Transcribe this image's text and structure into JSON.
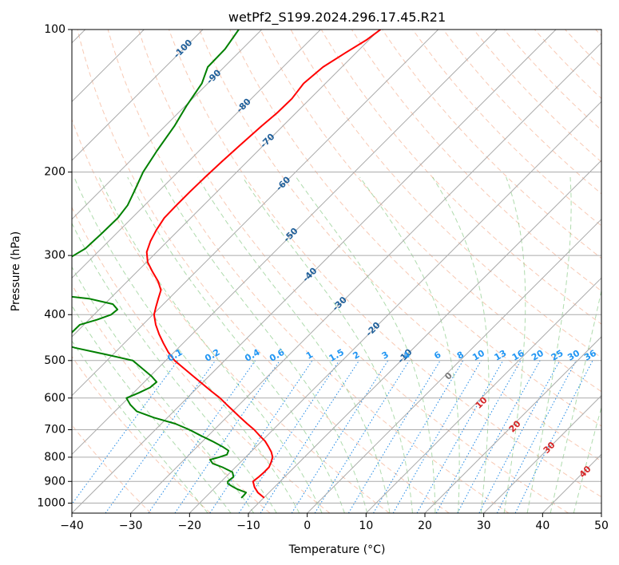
{
  "chart_data": {
    "type": "line",
    "subtype": "skew-T log-p diagram",
    "title": "wetPf2_S199.2024.296.17.45.R21",
    "xlabel": "Temperature (°C)",
    "ylabel": "Pressure (hPa)",
    "xlim": [
      -40,
      50
    ],
    "ylim": [
      1050,
      100
    ],
    "y_scale": "log",
    "grid": true,
    "x_ticks": [
      -40,
      -30,
      -20,
      -10,
      0,
      10,
      20,
      30,
      40,
      50
    ],
    "x_tick_labels": [
      "−40",
      "−30",
      "−20",
      "−10",
      "0",
      "10",
      "20",
      "30",
      "40",
      "50"
    ],
    "y_ticks": [
      100,
      200,
      300,
      400,
      500,
      600,
      700,
      800,
      900,
      1000
    ],
    "y_tick_labels": [
      "100",
      "200",
      "300",
      "400",
      "500",
      "600",
      "700",
      "800",
      "900",
      "1000"
    ],
    "isotherm_labels": [
      "-100",
      "-90",
      "-80",
      "-70",
      "-60",
      "-50",
      "-40",
      "-30",
      "-20",
      "-10"
    ],
    "mixing_ratio_labels": [
      "0.1",
      "0.2",
      "0.4",
      "0.6",
      "1",
      "1.5",
      "2",
      "3",
      "4",
      "6",
      "8",
      "10",
      "13",
      "16",
      "20",
      "25",
      "30",
      "36"
    ],
    "moist_adiabat_labels": [
      "0",
      "10",
      "20",
      "30",
      "40"
    ],
    "series": [
      {
        "color": "#ff0000",
        "pressure": [
          975,
          950,
          925,
          900,
          880,
          860,
          840,
          820,
          800,
          780,
          760,
          740,
          720,
          700,
          680,
          660,
          640,
          620,
          600,
          580,
          560,
          540,
          520,
          500,
          480,
          460,
          440,
          420,
          400,
          385,
          370,
          355,
          340,
          325,
          310,
          295,
          280,
          265,
          250,
          235,
          220,
          205,
          190,
          175,
          160,
          150,
          140,
          130,
          120,
          112,
          105,
          100
        ],
        "temperature": [
          -9.9,
          -11.9,
          -13.4,
          -14.6,
          -14.4,
          -14.3,
          -14.3,
          -14.8,
          -15.4,
          -16.5,
          -17.9,
          -19.4,
          -21.3,
          -23.2,
          -25.4,
          -27.6,
          -29.8,
          -32.1,
          -34.4,
          -37.1,
          -39.8,
          -42.6,
          -45.5,
          -48.5,
          -51.0,
          -53.3,
          -55.6,
          -57.8,
          -59.8,
          -60.8,
          -61.8,
          -62.8,
          -64.8,
          -67.3,
          -69.8,
          -71.7,
          -72.9,
          -73.8,
          -74.5,
          -74.6,
          -74.6,
          -74.5,
          -74.3,
          -74.0,
          -73.6,
          -73.2,
          -73.1,
          -73.7,
          -73.2,
          -71.8,
          -70.4,
          -69.8
        ]
      },
      {
        "color": "#008000",
        "pressure": [
          975,
          965,
          950,
          935,
          925,
          910,
          900,
          880,
          860,
          840,
          825,
          810,
          800,
          790,
          775,
          760,
          740,
          720,
          700,
          680,
          660,
          640,
          620,
          600,
          585,
          570,
          555,
          540,
          520,
          500,
          485,
          470,
          460,
          420,
          410,
          400,
          390,
          380,
          370,
          360,
          345,
          330,
          310,
          290,
          270,
          250,
          235,
          220,
          200,
          180,
          160,
          145,
          130,
          120,
          110,
          100
        ],
        "temperature": [
          -13.8,
          -13.8,
          -13.9,
          -15.9,
          -17.0,
          -18.5,
          -18.9,
          -18.7,
          -19.7,
          -22.2,
          -24.5,
          -25.6,
          -24.5,
          -23.6,
          -24.0,
          -25.7,
          -28.4,
          -31.3,
          -34.2,
          -37.6,
          -42.3,
          -46.3,
          -48.5,
          -50.3,
          -49.1,
          -48.1,
          -47.9,
          -49.7,
          -52.6,
          -55.6,
          -61.4,
          -67.6,
          -70.8,
          -70.7,
          -68.6,
          -67.1,
          -66.9,
          -68.6,
          -73.6,
          -83.3,
          -86.7,
          -85.5,
          -84.3,
          -82.7,
          -82.5,
          -82.4,
          -82.9,
          -84.1,
          -85.9,
          -87.2,
          -88.4,
          -89.8,
          -91.0,
          -92.8,
          -92.9,
          -93.9
        ]
      }
    ]
  }
}
